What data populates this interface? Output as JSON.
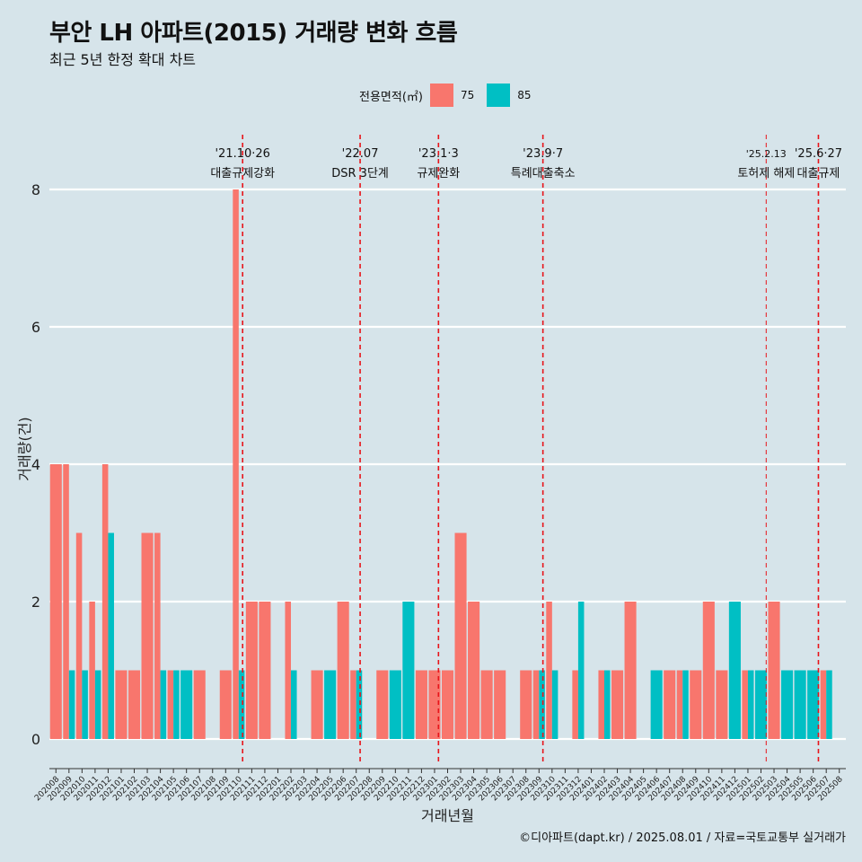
{
  "title": "부안 LH 아파트(2015) 거래량 변화 흐름",
  "subtitle": "최근 5년 한정 확대 차트",
  "caption": "©디아파트(dapt.kr) / 2025.08.01 / 자료=국토교통부 실거래가",
  "legend": {
    "title": "전용면적(㎡)",
    "items": [
      {
        "label": "75",
        "color": "#f8766d"
      },
      {
        "label": "85",
        "color": "#00bfc4"
      }
    ]
  },
  "chart_data": {
    "type": "bar",
    "xlabel": "거래년월",
    "ylabel": "거래량(건)",
    "ylim": [
      0,
      8
    ],
    "yticks": [
      0,
      2,
      4,
      6,
      8
    ],
    "grid": true,
    "legend_position": "top",
    "categories": [
      "202008",
      "202009",
      "202010",
      "202011",
      "202012",
      "202101",
      "202102",
      "202103",
      "202104",
      "202105",
      "202106",
      "202107",
      "202108",
      "202109",
      "202110",
      "202111",
      "202112",
      "202201",
      "202202",
      "202203",
      "202204",
      "202205",
      "202206",
      "202207",
      "202208",
      "202209",
      "202210",
      "202211",
      "202212",
      "202301",
      "202302",
      "202303",
      "202304",
      "202305",
      "202306",
      "202307",
      "202308",
      "202309",
      "202310",
      "202311",
      "202312",
      "202401",
      "202402",
      "202403",
      "202404",
      "202405",
      "202406",
      "202407",
      "202408",
      "202409",
      "202410",
      "202411",
      "202412",
      "202501",
      "202502",
      "202503",
      "202504",
      "202505",
      "202506",
      "202507",
      "202508"
    ],
    "series": [
      {
        "name": "75",
        "color": "#f8766d",
        "values": [
          4,
          4,
          3,
          2,
          4,
          1,
          1,
          3,
          3,
          1,
          0,
          1,
          0,
          1,
          8,
          2,
          2,
          0,
          2,
          0,
          1,
          0,
          2,
          1,
          0,
          1,
          0,
          0,
          1,
          1,
          1,
          3,
          2,
          1,
          1,
          0,
          1,
          1,
          2,
          0,
          1,
          0,
          1,
          1,
          2,
          0,
          0,
          1,
          1,
          1,
          2,
          1,
          0,
          1,
          0,
          2,
          0,
          0,
          0,
          1,
          0
        ]
      },
      {
        "name": "85",
        "color": "#00bfc4",
        "values": [
          0,
          1,
          1,
          1,
          3,
          0,
          0,
          0,
          1,
          1,
          1,
          0,
          0,
          0,
          1,
          0,
          0,
          0,
          1,
          0,
          0,
          1,
          0,
          1,
          0,
          0,
          1,
          2,
          0,
          0,
          0,
          0,
          0,
          0,
          0,
          0,
          0,
          1,
          1,
          0,
          2,
          0,
          1,
          0,
          0,
          0,
          1,
          0,
          1,
          0,
          0,
          0,
          2,
          1,
          1,
          0,
          1,
          1,
          1,
          1,
          0
        ]
      }
    ],
    "events": [
      {
        "date": "'21.10·26",
        "label": "대출규제강화",
        "index": 14.3
      },
      {
        "date": "'22.07",
        "label": "DSR 3단계",
        "index": 23.3
      },
      {
        "date": "'23.1·3",
        "label": "규제완화",
        "index": 29.3
      },
      {
        "date": "'23.9·7",
        "label": "특례대출축소",
        "index": 37.3
      },
      {
        "date": "'25.2.13",
        "label": "토허제 해제",
        "index": 54.4
      },
      {
        "date": "'25.6·27",
        "label": "대출규제",
        "index": 58.4
      }
    ]
  }
}
